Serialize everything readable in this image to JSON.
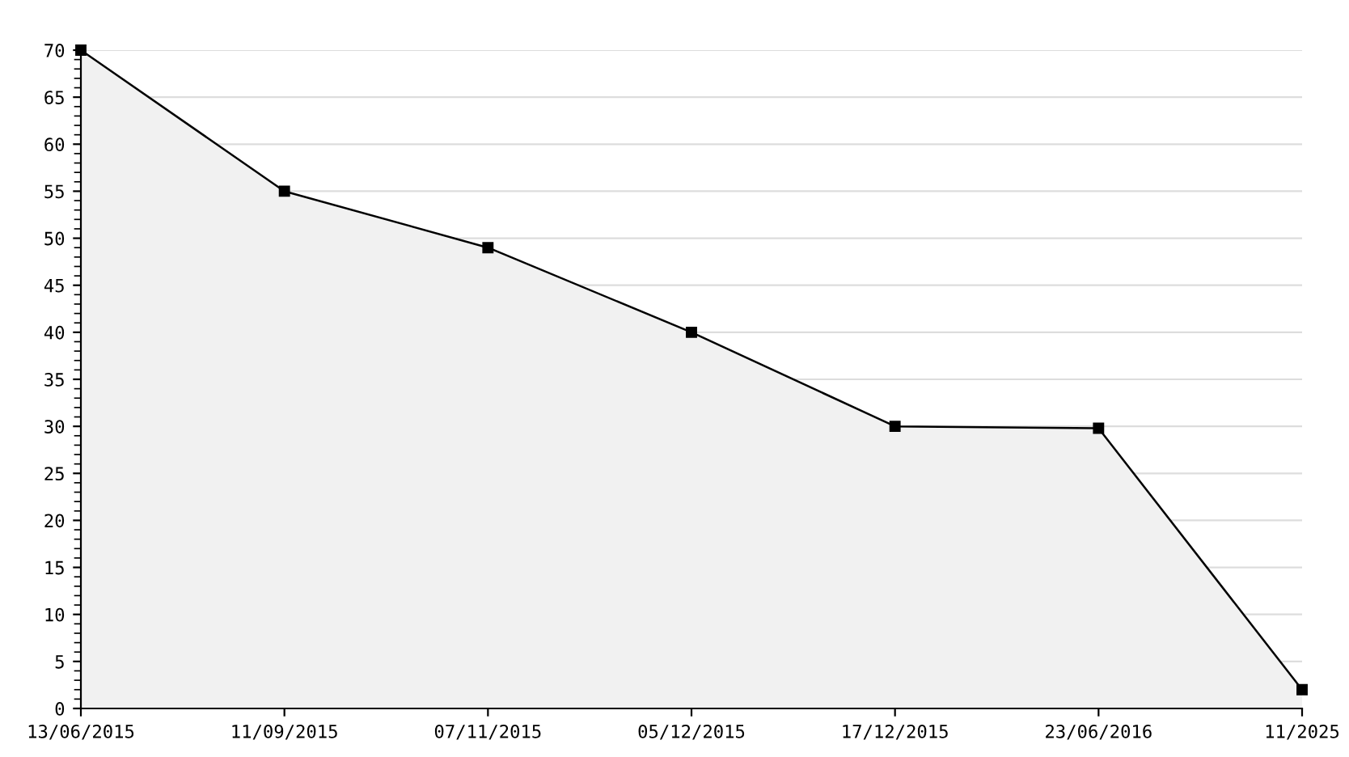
{
  "chart_data": {
    "type": "area",
    "categories": [
      "13/06/2015",
      "11/09/2015",
      "07/11/2015",
      "05/12/2015",
      "17/12/2015",
      "23/06/2016",
      "11/2025"
    ],
    "series": [
      {
        "color": "#000000",
        "values": [
          70,
          55,
          49,
          40,
          30,
          29.8,
          2
        ]
      }
    ],
    "ylim": [
      0,
      70
    ],
    "yticks": [
      0,
      5,
      10,
      15,
      20,
      25,
      30,
      35,
      40,
      45,
      50,
      55,
      60,
      65,
      70
    ],
    "grid": "y",
    "marker": "square",
    "line_style": "solid",
    "legend": false
  }
}
